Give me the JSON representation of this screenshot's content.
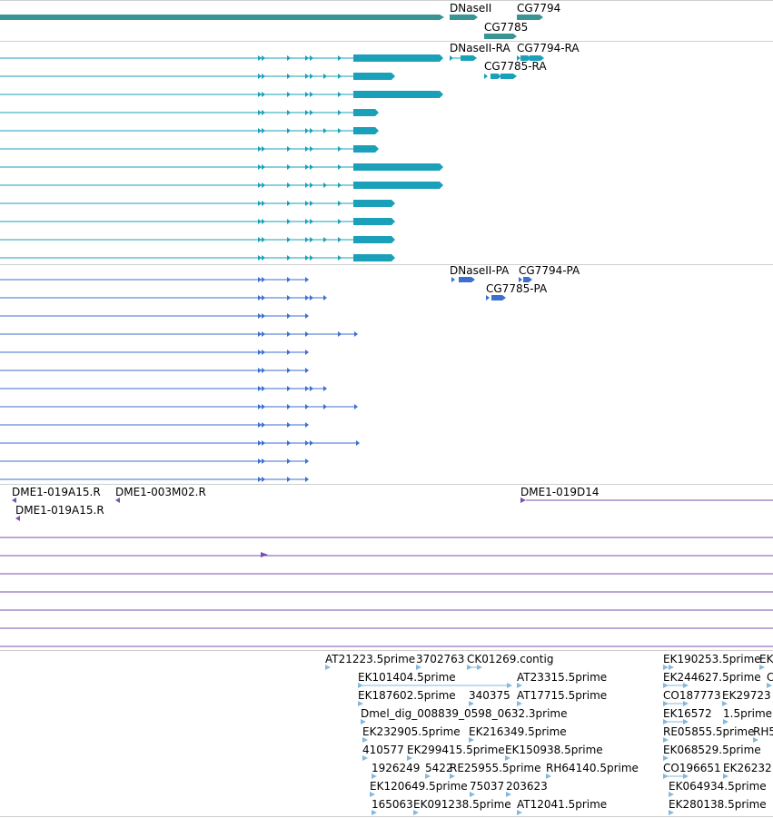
{
  "colors": {
    "gene": "#3a9494",
    "mrna": "#1aa0b8",
    "protein": "#3c6fd0",
    "clone": "#7a4fb0",
    "est": "#86b8dc",
    "separator": "#cfcfcf"
  },
  "tracks": {
    "genes": {
      "labels": [
        "DNaseII",
        "CG7794",
        "CG7785"
      ]
    },
    "mrnas": {
      "labels": [
        "DNaseII-RA",
        "CG7794-RA",
        "CG7785-RA"
      ]
    },
    "proteins": {
      "labels": [
        "DNaseII-PA",
        "CG7794-PA",
        "CG7785-PA"
      ]
    },
    "clones": {
      "labels": [
        "DME1-019A15.R",
        "DME1-003M02.R",
        "DME1-019A15.R",
        "DME1-019D14"
      ]
    },
    "ests": {
      "labels": [
        "AT21223.5prime",
        "3702763",
        "CK01269.contig",
        "EK101404.5prime",
        "AT23315.5prime",
        "EK187602.5prime",
        "340375",
        "AT17715.5prime",
        "Dmel_dig_008839_0598_0632.3prime",
        "EK232905.5prime",
        "EK216349.5prime",
        "410577",
        "EK299415.5prime",
        "EK150938.5prime",
        "1926249",
        "5422",
        "RE25955.5prime",
        "RH64140.5prime",
        "EK120649.5prime",
        "75037",
        "203623",
        "165063",
        "EK091238.5prime",
        "AT12041.5prime",
        "EK190253.5prime",
        "EK",
        "EK244627.5prime",
        "C",
        "CO187773",
        "EK29723",
        "EK16572",
        "1.5prime",
        "RE05855.5prime",
        "RH5",
        "EK068529.5prime",
        "CO196651",
        "EK26232",
        "EK064934.5prime",
        "EK280138.5prime"
      ]
    }
  }
}
